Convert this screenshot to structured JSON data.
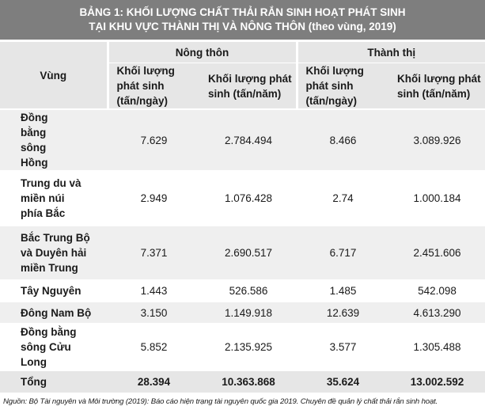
{
  "title_line1": "BẢNG 1: KHỐI LƯỢNG CHẤT THẢI RẮN SINH HOẠT PHÁT SINH",
  "title_line2": "TẠI KHU VỰC THÀNH THỊ VÀ NÔNG THÔN (theo vùng, 2019)",
  "header": {
    "region": "Vùng",
    "rural": "Nông thôn",
    "urban": "Thành thị",
    "per_day": "Khối lượng phát sinh (tấn/ngày)",
    "per_year": "Khối lượng phát sinh (tấn/năm)"
  },
  "rows": [
    {
      "region": "Đồng bằng sông Hồng",
      "rural_day": "7.629",
      "rural_year": "2.784.494",
      "urban_day": "8.466",
      "urban_year": "3.089.926"
    },
    {
      "region": "Trung du và miền núi phía Bắc",
      "rural_day": "2.949",
      "rural_year": "1.076.428",
      "urban_day": "2.74",
      "urban_year": "1.000.184"
    },
    {
      "region": "Bắc Trung Bộ và Duyên hải miền Trung",
      "rural_day": "7.371",
      "rural_year": "2.690.517",
      "urban_day": "6.717",
      "urban_year": "2.451.606"
    },
    {
      "region": "Tây Nguyên",
      "rural_day": "1.443",
      "rural_year": "526.586",
      "urban_day": "1.485",
      "urban_year": "542.098"
    },
    {
      "region": "Đông Nam Bộ",
      "rural_day": "3.150",
      "rural_year": "1.149.918",
      "urban_day": "12.639",
      "urban_year": "4.613.290"
    },
    {
      "region": "Đồng bằng sông Cửu Long",
      "rural_day": "5.852",
      "rural_year": "2.135.925",
      "urban_day": "3.577",
      "urban_year": "1.305.488"
    }
  ],
  "total": {
    "region": "Tổng",
    "rural_day": "28.394",
    "rural_year": "10.363.868",
    "urban_day": "35.624",
    "urban_year": "13.002.592"
  },
  "source": "Nguồn: Bộ Tài nguyên và Môi trường (2019): Báo cáo hiện trạng tài nguyên quốc gia 2019. Chuyên đề quản lý chất thải rắn sinh hoạt.",
  "colors": {
    "title_bg": "#7e7e7e",
    "header_bg": "#e6e6e6",
    "stripe_bg": "#efefef"
  }
}
